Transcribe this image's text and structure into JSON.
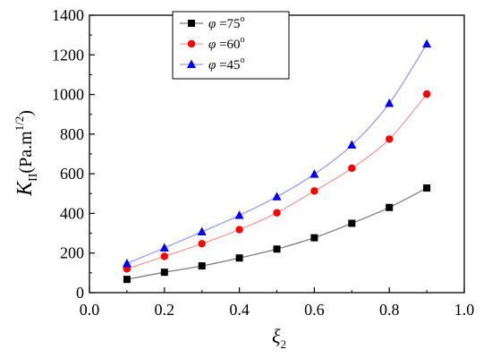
{
  "chart_data": {
    "type": "line",
    "title": "",
    "xlabel": {
      "base": "ξ",
      "sub": "2"
    },
    "ylabel": {
      "base": "K",
      "sub": "II",
      "unit_prefix": "(Pa.m",
      "unit_sup": "1/2",
      "unit_suffix": ")"
    },
    "xlim": [
      0.0,
      1.0
    ],
    "ylim": [
      0,
      1400
    ],
    "xticks": [
      "0.0",
      "0.2",
      "0.4",
      "0.6",
      "0.8",
      "1.0"
    ],
    "yticks": [
      "0",
      "200",
      "400",
      "600",
      "800",
      "1000",
      "1200",
      "1400"
    ],
    "legend_position": "top-left",
    "x": [
      0.1,
      0.2,
      0.3,
      0.4,
      0.5,
      0.6,
      0.7,
      0.8,
      0.9
    ],
    "series": [
      {
        "name": "φ =75",
        "sup": "o",
        "marker": "square",
        "color": "#000000",
        "line_color": "#7f7f7f",
        "values": [
          67,
          103,
          135,
          175,
          220,
          277,
          350,
          430,
          528
        ]
      },
      {
        "name": "φ =60",
        "sup": "o",
        "marker": "circle",
        "color": "#ff0000",
        "line_color": "#ff9a9a",
        "values": [
          120,
          183,
          247,
          318,
          403,
          513,
          628,
          775,
          1002
        ]
      },
      {
        "name": "φ =45",
        "sup": "o",
        "marker": "triangle",
        "color": "#0000ff",
        "line_color": "#9a9aff",
        "values": [
          147,
          226,
          307,
          390,
          484,
          598,
          745,
          955,
          1255
        ]
      }
    ]
  }
}
